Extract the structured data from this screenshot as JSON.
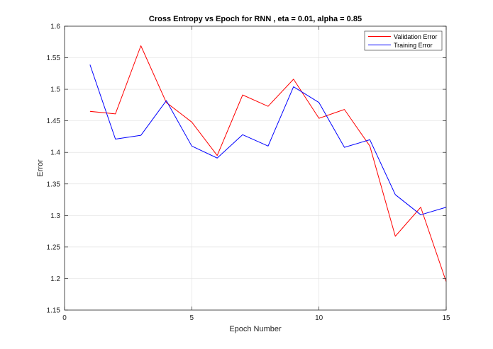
{
  "chart_data": {
    "type": "line",
    "title": "Cross Entropy vs Epoch for RNN , eta = 0.01, alpha = 0.85",
    "xlabel": "Epoch Number",
    "ylabel": "Error",
    "xlim": [
      0,
      15
    ],
    "ylim": [
      1.15,
      1.6
    ],
    "xticks": [
      0,
      5,
      10,
      15
    ],
    "yticks": [
      1.15,
      1.2,
      1.25,
      1.3,
      1.35,
      1.4,
      1.45,
      1.5,
      1.55,
      1.6
    ],
    "grid": true,
    "legend_position": "top-right",
    "x": [
      1,
      2,
      3,
      4,
      5,
      6,
      7,
      8,
      9,
      10,
      11,
      12,
      13,
      14,
      15
    ],
    "series": [
      {
        "name": "Validation Error",
        "color": "#ff0000",
        "values": [
          1.465,
          1.461,
          1.569,
          1.479,
          1.448,
          1.395,
          1.491,
          1.473,
          1.516,
          1.454,
          1.468,
          1.41,
          1.267,
          1.313,
          1.195
        ]
      },
      {
        "name": "Training Error",
        "color": "#0000ff",
        "values": [
          1.539,
          1.421,
          1.427,
          1.482,
          1.41,
          1.391,
          1.428,
          1.41,
          1.504,
          1.479,
          1.408,
          1.42,
          1.333,
          1.301,
          1.313
        ]
      }
    ]
  }
}
